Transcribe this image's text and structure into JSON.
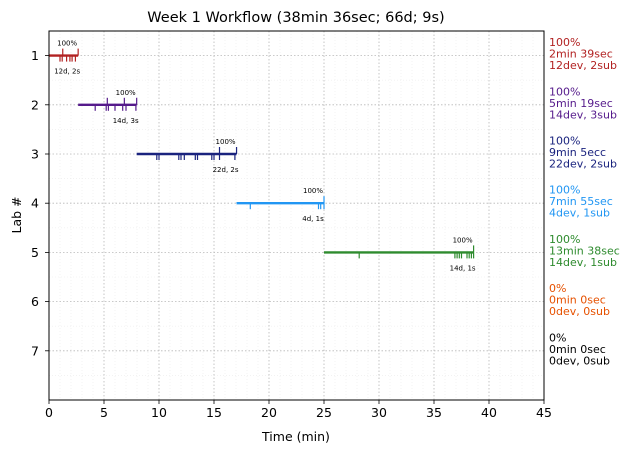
{
  "chart_data": {
    "type": "timeline",
    "title": "Week 1 Workflow (38min 36sec; 66d; 9s)",
    "xlabel": "Time (min)",
    "ylabel": "Lab #",
    "xlim": [
      0,
      45
    ],
    "ylim": [
      0.5,
      8
    ],
    "xticks": [
      0,
      5,
      10,
      15,
      20,
      25,
      30,
      35,
      40,
      45
    ],
    "grid": true,
    "labs": [
      {
        "lab": 1,
        "color": "#b22222",
        "start": 0.0,
        "end": 2.65,
        "devs": [
          1.0,
          1.2,
          1.6,
          1.9,
          2.1,
          2.4
        ],
        "subs": [
          1.25,
          2.65
        ],
        "pct_label": "100%",
        "count_label": "12d, 2s",
        "side": [
          "100%",
          "2min 39sec",
          "12dev, 2sub"
        ]
      },
      {
        "lab": 2,
        "color": "#551a8b",
        "start": 2.65,
        "end": 7.97,
        "devs": [
          4.2,
          5.2,
          5.4,
          6.0,
          6.7,
          7.0,
          7.9
        ],
        "subs": [
          5.3,
          6.85,
          7.97
        ],
        "pct_label": "100%",
        "count_label": "14d, 3s",
        "side": [
          "100%",
          "5min 19sec",
          "14dev, 3sub"
        ]
      },
      {
        "lab": 3,
        "color": "#1a237e",
        "start": 7.97,
        "end": 17.05,
        "devs": [
          9.8,
          10.0,
          11.8,
          12.0,
          12.3,
          13.3,
          13.5,
          14.8,
          15.0,
          15.5,
          16.9
        ],
        "subs": [
          15.5,
          17.05
        ],
        "pct_label": "100%",
        "count_label": "22d, 2s",
        "side": [
          "100%",
          "9min 5ecc",
          "22dev, 2sub"
        ]
      },
      {
        "lab": 4,
        "color": "#2196f3",
        "start": 17.05,
        "end": 25.0,
        "devs": [
          18.3,
          24.5,
          24.7,
          25.0
        ],
        "subs": [
          25.0
        ],
        "pct_label": "100%",
        "count_label": "4d, 1s",
        "side": [
          "100%",
          "7min 55sec",
          "4dev, 1sub"
        ]
      },
      {
        "lab": 5,
        "color": "#2e8b2e",
        "start": 25.0,
        "end": 38.6,
        "devs": [
          28.2,
          36.9,
          37.1,
          37.3,
          37.5,
          38.0,
          38.2,
          38.4,
          38.6
        ],
        "subs": [
          38.6
        ],
        "pct_label": "100%",
        "count_label": "14d, 1s",
        "side": [
          "100%",
          "13min 38sec",
          "14dev, 1sub"
        ]
      },
      {
        "lab": 6,
        "color": "#e65100",
        "start": null,
        "end": null,
        "devs": [],
        "subs": [],
        "pct_label": "",
        "count_label": "",
        "side": [
          "0%",
          "0min 0sec",
          "0dev, 0sub"
        ]
      },
      {
        "lab": 7,
        "color": "#000000",
        "start": null,
        "end": null,
        "devs": [],
        "subs": [],
        "pct_label": "",
        "count_label": "",
        "side": [
          "0%",
          "0min 0sec",
          "0dev, 0sub"
        ]
      }
    ]
  }
}
